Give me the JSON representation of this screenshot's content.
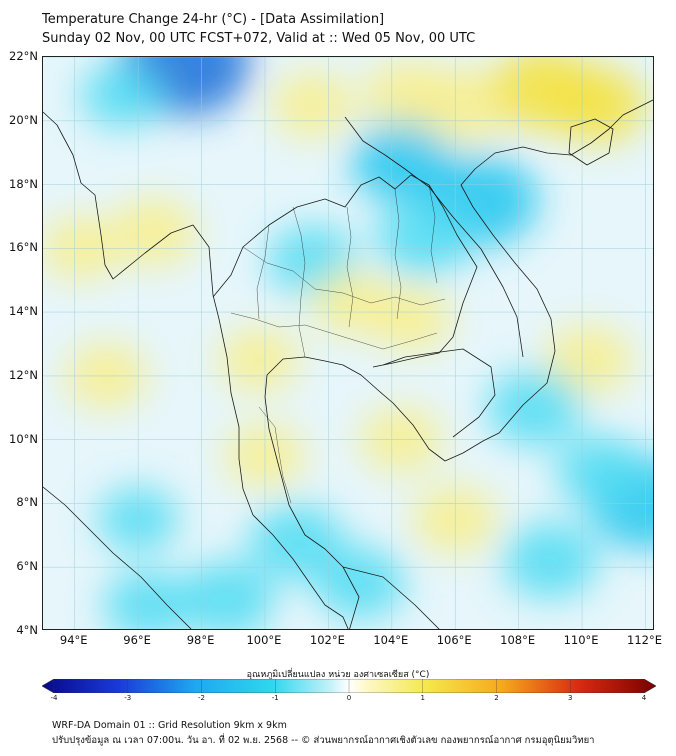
{
  "header": {
    "title_line1": "Temperature Change 24-hr (°C) - [Data Assimilation]",
    "title_line2": "Sunday 02 Nov, 00 UTC FCST+072, Valid at :: Wed 05 Nov, 00 UTC"
  },
  "map": {
    "lat_labels": [
      "22°N",
      "20°N",
      "18°N",
      "16°N",
      "14°N",
      "12°N",
      "10°N",
      "8°N",
      "6°N",
      "4°N"
    ],
    "lon_labels": [
      "94°E",
      "96°E",
      "98°E",
      "100°E",
      "102°E",
      "104°E",
      "106°E",
      "108°E",
      "110°E",
      "112°E"
    ],
    "lat_range": [
      4,
      22
    ],
    "lon_range": [
      93,
      112.3
    ],
    "field_unit": "°C",
    "anomalies": [
      {
        "lon": 97.5,
        "lat": 21.8,
        "value": -2.6
      },
      {
        "lon": 95.5,
        "lat": 20.8,
        "value": -0.7
      },
      {
        "lon": 101.5,
        "lat": 20.5,
        "value": 0.7
      },
      {
        "lon": 104.5,
        "lat": 20.8,
        "value": 0.9
      },
      {
        "lon": 106.3,
        "lat": 20.5,
        "value": 1.1
      },
      {
        "lon": 108.8,
        "lat": 21.0,
        "value": 1.6
      },
      {
        "lon": 110.5,
        "lat": 20.5,
        "value": 1.2
      },
      {
        "lon": 104.3,
        "lat": 18.7,
        "value": -1.4
      },
      {
        "lon": 106.8,
        "lat": 17.5,
        "value": -2.0
      },
      {
        "lon": 105.0,
        "lat": 16.3,
        "value": -1.2
      },
      {
        "lon": 101.5,
        "lat": 15.6,
        "value": -1.0
      },
      {
        "lon": 96.5,
        "lat": 16.5,
        "value": 0.8
      },
      {
        "lon": 94.2,
        "lat": 16.0,
        "value": 0.6
      },
      {
        "lon": 102.7,
        "lat": 14.3,
        "value": 0.6
      },
      {
        "lon": 104.6,
        "lat": 13.8,
        "value": 0.7
      },
      {
        "lon": 99.8,
        "lat": 12.5,
        "value": 0.6
      },
      {
        "lon": 95.0,
        "lat": 12.0,
        "value": 0.7
      },
      {
        "lon": 110.2,
        "lat": 12.5,
        "value": 0.9
      },
      {
        "lon": 108.5,
        "lat": 11.0,
        "value": -1.2
      },
      {
        "lon": 104.3,
        "lat": 10.0,
        "value": 0.7
      },
      {
        "lon": 100.0,
        "lat": 9.5,
        "value": 0.6
      },
      {
        "lon": 112.0,
        "lat": 8.0,
        "value": -2.0
      },
      {
        "lon": 106.0,
        "lat": 7.5,
        "value": 0.8
      },
      {
        "lon": 101.0,
        "lat": 6.8,
        "value": -1.2
      },
      {
        "lon": 96.0,
        "lat": 7.5,
        "value": -0.6
      },
      {
        "lon": 98.8,
        "lat": 5.0,
        "value": -1.2
      },
      {
        "lon": 103.0,
        "lat": 5.5,
        "value": -1.0
      },
      {
        "lon": 109.0,
        "lat": 6.2,
        "value": -1.2
      },
      {
        "lon": 110.6,
        "lat": 9.0,
        "value": -1.0
      },
      {
        "lon": 96.3,
        "lat": 4.8,
        "value": -0.9
      }
    ]
  },
  "colorbar": {
    "label": "อุณหภูมิเปลี่ยนแปลง หน่วย องศาเซลเซียส (°C)",
    "min": -4,
    "max": 4,
    "tick_labels": [
      "-4",
      "-3",
      "-2",
      "-1",
      "0",
      "1",
      "2",
      "3",
      "4"
    ],
    "tick_values": [
      -4,
      -3,
      -2,
      -1,
      0,
      1,
      2,
      3,
      4
    ],
    "colors": {
      "cold_extreme": "#08088a",
      "cold": "#1fd0f0",
      "neutral": "#ffffff",
      "warm": "#f2e24a",
      "hot_extreme": "#7a0000"
    }
  },
  "footer": {
    "line1": "WRF-DA Domain 01 :: Grid Resolution 9km x 9km",
    "line2": "ปรับปรุงข้อมูล ณ เวลา 07:00น. วัน อา. ที่ 02 พ.ย. 2568 -- © ส่วนพยากรณ์อากาศเชิงตัวเลข กองพยากรณ์อากาศ กรมอุตุนิยมวิทยา"
  }
}
